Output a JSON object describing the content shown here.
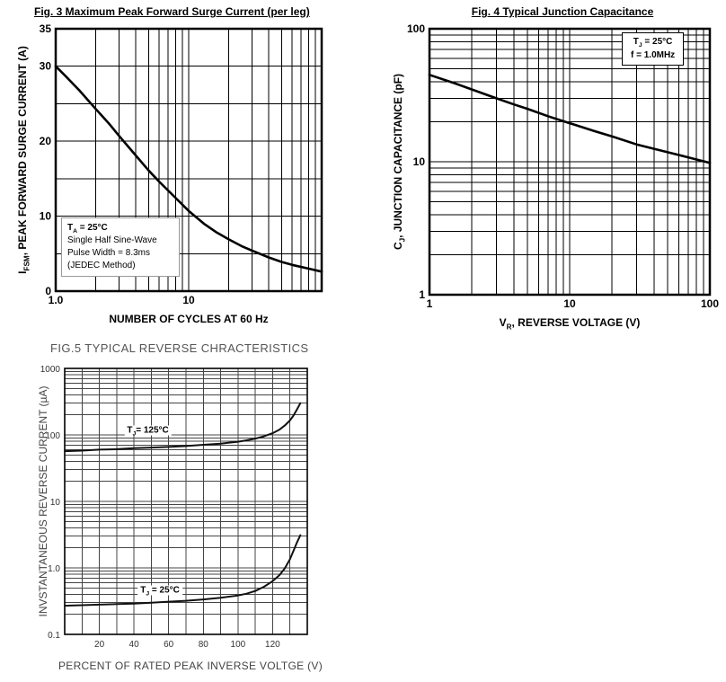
{
  "chart_data": [
    {
      "id": "fig3",
      "type": "line",
      "title": "Fig. 3  Maximum Peak Forward Surge Current (per leg)",
      "xlabel": "NUMBER OF CYCLES AT 60 Hz",
      "ylabel": {
        "pre": "I",
        "sub": "FSM",
        "rest": ", PEAK FORWARD SURGE CURRENT (A)"
      },
      "x": {
        "scale": "log",
        "min": 1,
        "max": 100,
        "ticks": [
          {
            "v": 1,
            "label": "1.0"
          },
          {
            "v": 10,
            "label": "10"
          }
        ]
      },
      "y": {
        "scale": "linear",
        "min": 0,
        "max": 35,
        "grid_step": 5,
        "ticks": [
          {
            "v": 0,
            "label": "0"
          },
          {
            "v": 10,
            "label": "10"
          },
          {
            "v": 20,
            "label": "20"
          },
          {
            "v": 30,
            "label": "30"
          },
          {
            "v": 35,
            "label": "35"
          }
        ]
      },
      "annotation": {
        "l1pre": "T",
        "l1sub": "A",
        "l1rest": " = 25°C",
        "l2": "Single Half Sine-Wave",
        "l3": "Pulse Width = 8.3ms",
        "l4": "(JEDEC Method)"
      },
      "series": [
        {
          "name": "surge-current",
          "points": [
            [
              1,
              30
            ],
            [
              1.2,
              28.6
            ],
            [
              1.5,
              26.8
            ],
            [
              2,
              24.3
            ],
            [
              2.5,
              22.4
            ],
            [
              3,
              20.7
            ],
            [
              4,
              18.1
            ],
            [
              5,
              16.1
            ],
            [
              6,
              14.6
            ],
            [
              8,
              12.4
            ],
            [
              10,
              10.7
            ],
            [
              13,
              9.0
            ],
            [
              16,
              7.9
            ],
            [
              20,
              6.9
            ],
            [
              25,
              6.0
            ],
            [
              30,
              5.4
            ],
            [
              40,
              4.5
            ],
            [
              50,
              3.9
            ],
            [
              60,
              3.5
            ],
            [
              80,
              3.0
            ],
            [
              100,
              2.6
            ]
          ]
        }
      ]
    },
    {
      "id": "fig4",
      "type": "line",
      "title": "Fig. 4  Typical Junction Capacitance",
      "xlabel": {
        "pre": "V",
        "sub": "R",
        "rest": ", REVERSE VOLTAGE (V)"
      },
      "ylabel": {
        "pre": "C",
        "sub": "J",
        "rest": ", JUNCTION CAPACITANCE (pF)"
      },
      "x": {
        "scale": "log",
        "min": 1,
        "max": 100,
        "ticks": [
          {
            "v": 1,
            "label": "1"
          },
          {
            "v": 10,
            "label": "10"
          },
          {
            "v": 100,
            "label": "100"
          }
        ]
      },
      "y": {
        "scale": "log",
        "min": 1,
        "max": 100,
        "ticks": [
          {
            "v": 1,
            "label": "1"
          },
          {
            "v": 10,
            "label": "10"
          },
          {
            "v": 100,
            "label": "100"
          }
        ]
      },
      "annotation": {
        "l1pre": "T",
        "l1sub": "J",
        "l1rest": " = 25°C",
        "l2": "f = 1.0MHz"
      },
      "series": [
        {
          "name": "junction-capacitance",
          "points": [
            [
              1,
              45
            ],
            [
              1.5,
              39
            ],
            [
              2,
              35
            ],
            [
              3,
              30
            ],
            [
              4,
              27
            ],
            [
              5,
              25
            ],
            [
              7,
              22
            ],
            [
              10,
              19.5
            ],
            [
              15,
              17
            ],
            [
              20,
              15.5
            ],
            [
              30,
              13.5
            ],
            [
              50,
              11.8
            ],
            [
              70,
              10.8
            ],
            [
              100,
              9.8
            ]
          ]
        }
      ]
    },
    {
      "id": "fig5",
      "type": "line",
      "title": "FIG.5 TYPICAL REVERSE CHRACTERISTICS",
      "xlabel": "PERCENT OF RATED PEAK INVERSE VOLTGE  (V)",
      "ylabel": "INVSTANTANEOUS REVERSE CURRENT (µA)",
      "x": {
        "scale": "linear",
        "min": 0,
        "max": 140,
        "grid_step": 10,
        "ticks": [
          {
            "v": 20,
            "label": "20"
          },
          {
            "v": 40,
            "label": "40"
          },
          {
            "v": 60,
            "label": "60"
          },
          {
            "v": 80,
            "label": "80"
          },
          {
            "v": 100,
            "label": "100"
          },
          {
            "v": 120,
            "label": "120"
          }
        ]
      },
      "y": {
        "scale": "log",
        "min": 0.1,
        "max": 1000,
        "ticks": [
          {
            "v": 1000,
            "label": "1000"
          },
          {
            "v": 100,
            "label": "100"
          },
          {
            "v": 10,
            "label": "10"
          },
          {
            "v": 1,
            "label": "1.0"
          },
          {
            "v": 0.1,
            "label": "0.1"
          }
        ]
      },
      "labels": [
        {
          "pre": "T",
          "sub": "J",
          "rest": "= 125°C",
          "x": 48,
          "y": 118
        },
        {
          "pre": "T",
          "sub": "J",
          "rest": " = 25°C",
          "x": 55,
          "y": 0.46
        }
      ],
      "series": [
        {
          "name": "tj-125c",
          "points": [
            [
              0,
              57
            ],
            [
              10,
              58
            ],
            [
              20,
              60
            ],
            [
              30,
              61
            ],
            [
              40,
              63
            ],
            [
              50,
              64.5
            ],
            [
              60,
              66
            ],
            [
              70,
              68
            ],
            [
              80,
              71
            ],
            [
              90,
              74
            ],
            [
              100,
              79
            ],
            [
              105,
              83
            ],
            [
              110,
              88
            ],
            [
              115,
              95
            ],
            [
              120,
              106
            ],
            [
              124,
              120
            ],
            [
              127,
              138
            ],
            [
              130,
              165
            ],
            [
              132,
              195
            ],
            [
              134,
              240
            ],
            [
              136,
              300
            ]
          ]
        },
        {
          "name": "tj-25c",
          "points": [
            [
              0,
              0.27
            ],
            [
              10,
              0.275
            ],
            [
              20,
              0.28
            ],
            [
              30,
              0.285
            ],
            [
              40,
              0.29
            ],
            [
              50,
              0.3
            ],
            [
              60,
              0.31
            ],
            [
              70,
              0.32
            ],
            [
              80,
              0.335
            ],
            [
              90,
              0.355
            ],
            [
              100,
              0.385
            ],
            [
              105,
              0.41
            ],
            [
              110,
              0.45
            ],
            [
              115,
              0.52
            ],
            [
              120,
              0.63
            ],
            [
              124,
              0.78
            ],
            [
              127,
              0.98
            ],
            [
              130,
              1.35
            ],
            [
              132,
              1.8
            ],
            [
              134,
              2.4
            ],
            [
              136,
              3.1
            ]
          ]
        }
      ]
    }
  ]
}
